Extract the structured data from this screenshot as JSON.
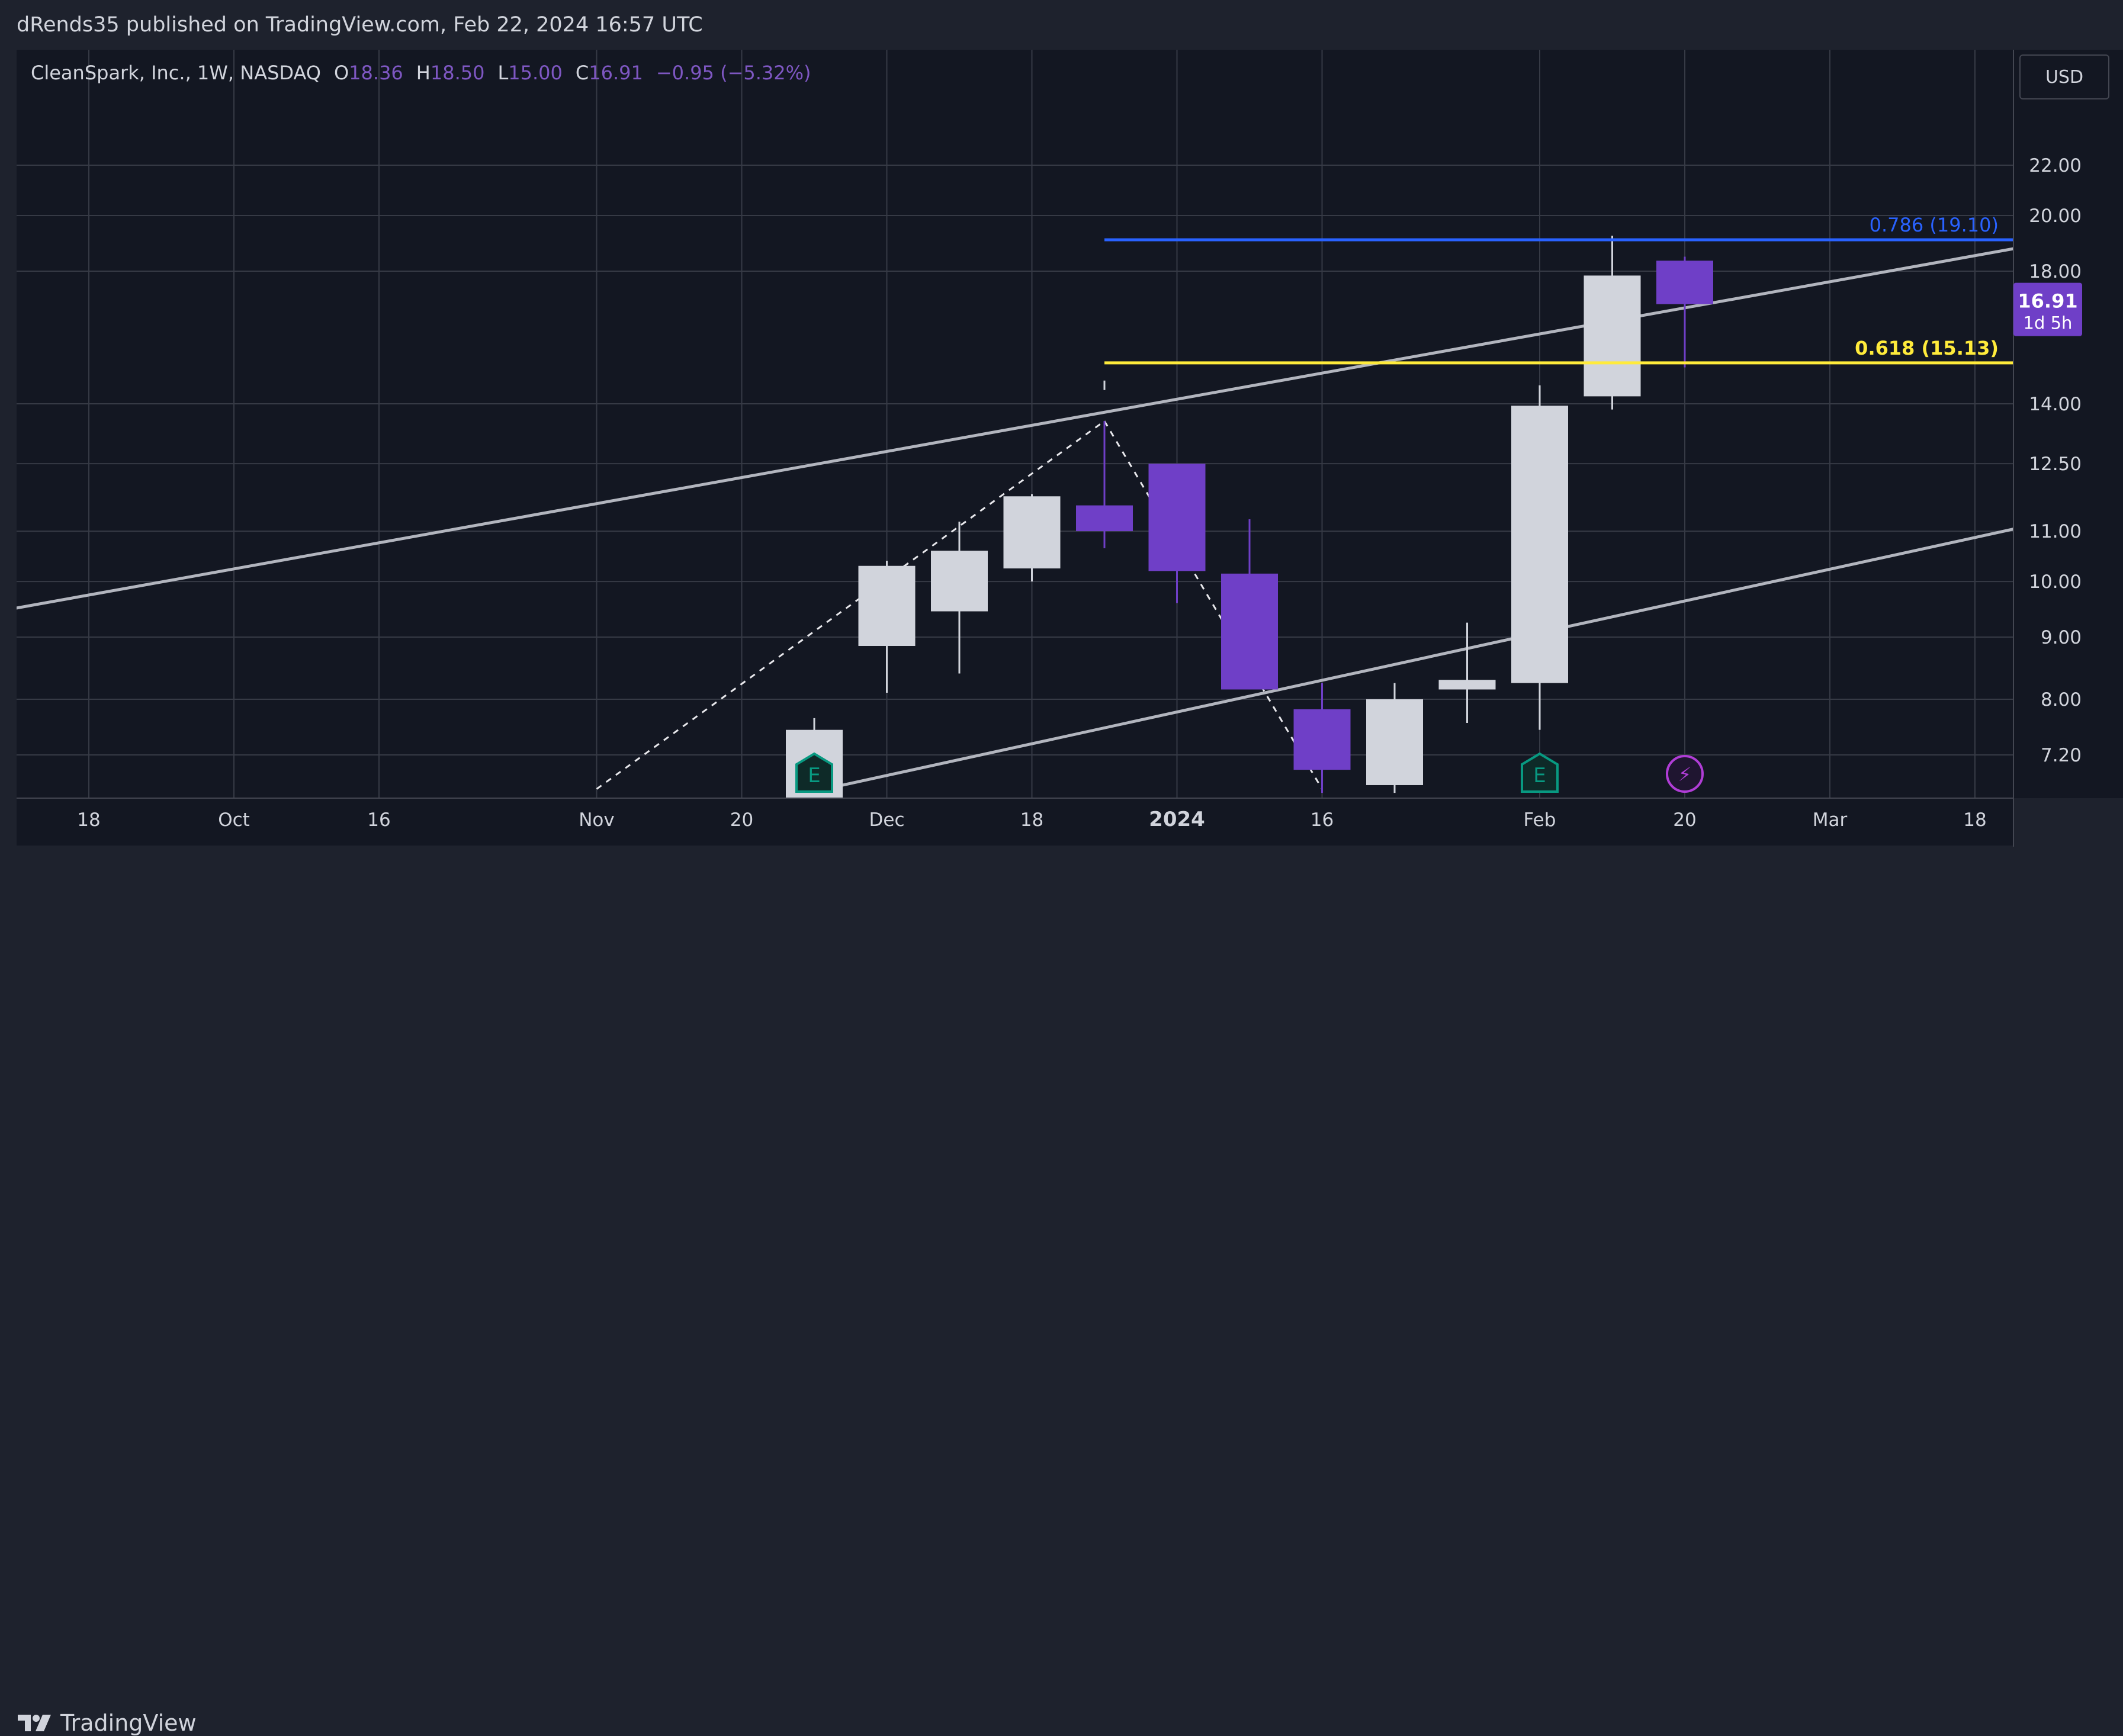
{
  "header": {
    "text": "dRends35 published on TradingView.com, Feb 22, 2024 16:57 UTC"
  },
  "legend": {
    "symbol": "CleanSpark, Inc., 1W, NASDAQ",
    "o_label": "O",
    "o_value": "18.36",
    "h_label": "H",
    "h_value": "18.50",
    "l_label": "L",
    "l_value": "15.00",
    "c_label": "C",
    "c_value": "16.91",
    "change": "−0.95 (−5.32%)"
  },
  "currency_button": "USD",
  "footer": {
    "logo_text": "TradingView"
  },
  "colors": {
    "background": "#131722",
    "chrome": "#1e222d",
    "grid": "#363a45",
    "bull_candle": "#d1d4dc",
    "bear_candle": "#6f3fc7",
    "fib_786": "#2962ff",
    "fib_618": "#ffeb3b",
    "trend_line": "#b2b5be",
    "earnings_icon": "#089981",
    "dividend_icon": "#b03dd6"
  },
  "chart_data": {
    "type": "candlestick",
    "symbol": "CleanSpark, Inc.",
    "timeframe": "1W",
    "exchange": "NASDAQ",
    "currency": "USD",
    "x_ticks": [
      "18",
      "Oct",
      "16",
      "Nov",
      "20",
      "Dec",
      "18",
      "2024",
      "16",
      "Feb",
      "20",
      "Mar",
      "18"
    ],
    "x_tick_dates": [
      "2023-09-18",
      "2023-10-02",
      "2023-10-16",
      "2023-11-06",
      "2023-11-20",
      "2023-12-04",
      "2023-12-18",
      "2024-01-01",
      "2024-01-15",
      "2024-02-05",
      "2024-02-19",
      "2024-03-04",
      "2024-03-18"
    ],
    "bold_ticks": [
      "2024"
    ],
    "y_ticks": [
      7.2,
      8.0,
      9.0,
      10.0,
      11.0,
      12.5,
      14.0,
      18.0,
      20.0,
      22.0
    ],
    "y_tick_labels": [
      "7.20",
      "8.00",
      "9.00",
      "10.00",
      "11.00",
      "12.50",
      "14.00",
      "18.00",
      "20.00",
      "22.00"
    ],
    "y_scale": "log",
    "y_range": [
      6.75,
      26.0
    ],
    "candles": [
      {
        "date": "2023-11-27",
        "open": 6.6,
        "high": 7.72,
        "low": 6.55,
        "close": 7.55
      },
      {
        "date": "2023-12-04",
        "open": 8.85,
        "high": 10.4,
        "low": 8.1,
        "close": 10.3
      },
      {
        "date": "2023-12-11",
        "open": 9.45,
        "high": 11.2,
        "low": 8.4,
        "close": 10.6
      },
      {
        "date": "2023-12-18",
        "open": 10.25,
        "high": 11.8,
        "low": 10.0,
        "close": 11.75
      },
      {
        "date": "2023-12-25",
        "open": 11.55,
        "high": 13.55,
        "low": 10.65,
        "close": 11.0
      },
      {
        "date": "2024-01-01",
        "open": 12.5,
        "high": 12.5,
        "low": 9.6,
        "close": 10.2
      },
      {
        "date": "2024-01-08",
        "open": 10.15,
        "high": 11.25,
        "low": 8.15,
        "close": 8.15
      },
      {
        "date": "2024-01-15",
        "open": 7.85,
        "high": 8.25,
        "low": 6.7,
        "close": 7.0
      },
      {
        "date": "2024-01-22",
        "open": 6.8,
        "high": 8.25,
        "low": 6.7,
        "close": 8.0
      },
      {
        "date": "2024-01-29",
        "open": 8.15,
        "high": 9.25,
        "low": 7.65,
        "close": 8.3
      },
      {
        "date": "2024-02-05",
        "open": 8.25,
        "high": 14.5,
        "low": 7.55,
        "close": 13.95
      },
      {
        "date": "2024-02-12",
        "open": 14.2,
        "high": 19.25,
        "low": 13.85,
        "close": 17.85
      },
      {
        "date": "2024-02-19",
        "open": 18.36,
        "high": 18.5,
        "low": 15.0,
        "close": 16.91
      }
    ],
    "fib_levels": [
      {
        "label": "0.786 (19.10)",
        "value": 19.1,
        "color": "#2962ff",
        "start_date": "2023-12-25"
      },
      {
        "label": "0.618 (15.13)",
        "value": 15.13,
        "color": "#ffeb3b",
        "start_date": "2023-12-25"
      }
    ],
    "trend_lines": [
      {
        "from": {
          "date": "2023-08-28",
          "value": 9.05
        },
        "to": {
          "date": "2024-03-25",
          "value": 19.0
        }
      },
      {
        "from": {
          "date": "2023-11-27",
          "value": 6.72
        },
        "to": {
          "date": "2024-03-25",
          "value": 11.2
        }
      }
    ],
    "zigzag": [
      {
        "date": "2023-11-06",
        "value": 6.75
      },
      {
        "date": "2023-12-25",
        "value": 13.55
      },
      {
        "date": "2024-01-15",
        "value": 6.75
      }
    ],
    "marker_above": {
      "date": "2023-12-25",
      "value": 14.5
    },
    "events": [
      {
        "type": "earnings",
        "label": "E",
        "date": "2023-11-27"
      },
      {
        "type": "earnings",
        "label": "E",
        "date": "2024-02-05"
      },
      {
        "type": "dividend",
        "label": "⚡",
        "date": "2024-02-19"
      }
    ],
    "last_price": {
      "value": "16.91",
      "countdown": "1d 5h",
      "numeric": 16.91
    }
  }
}
